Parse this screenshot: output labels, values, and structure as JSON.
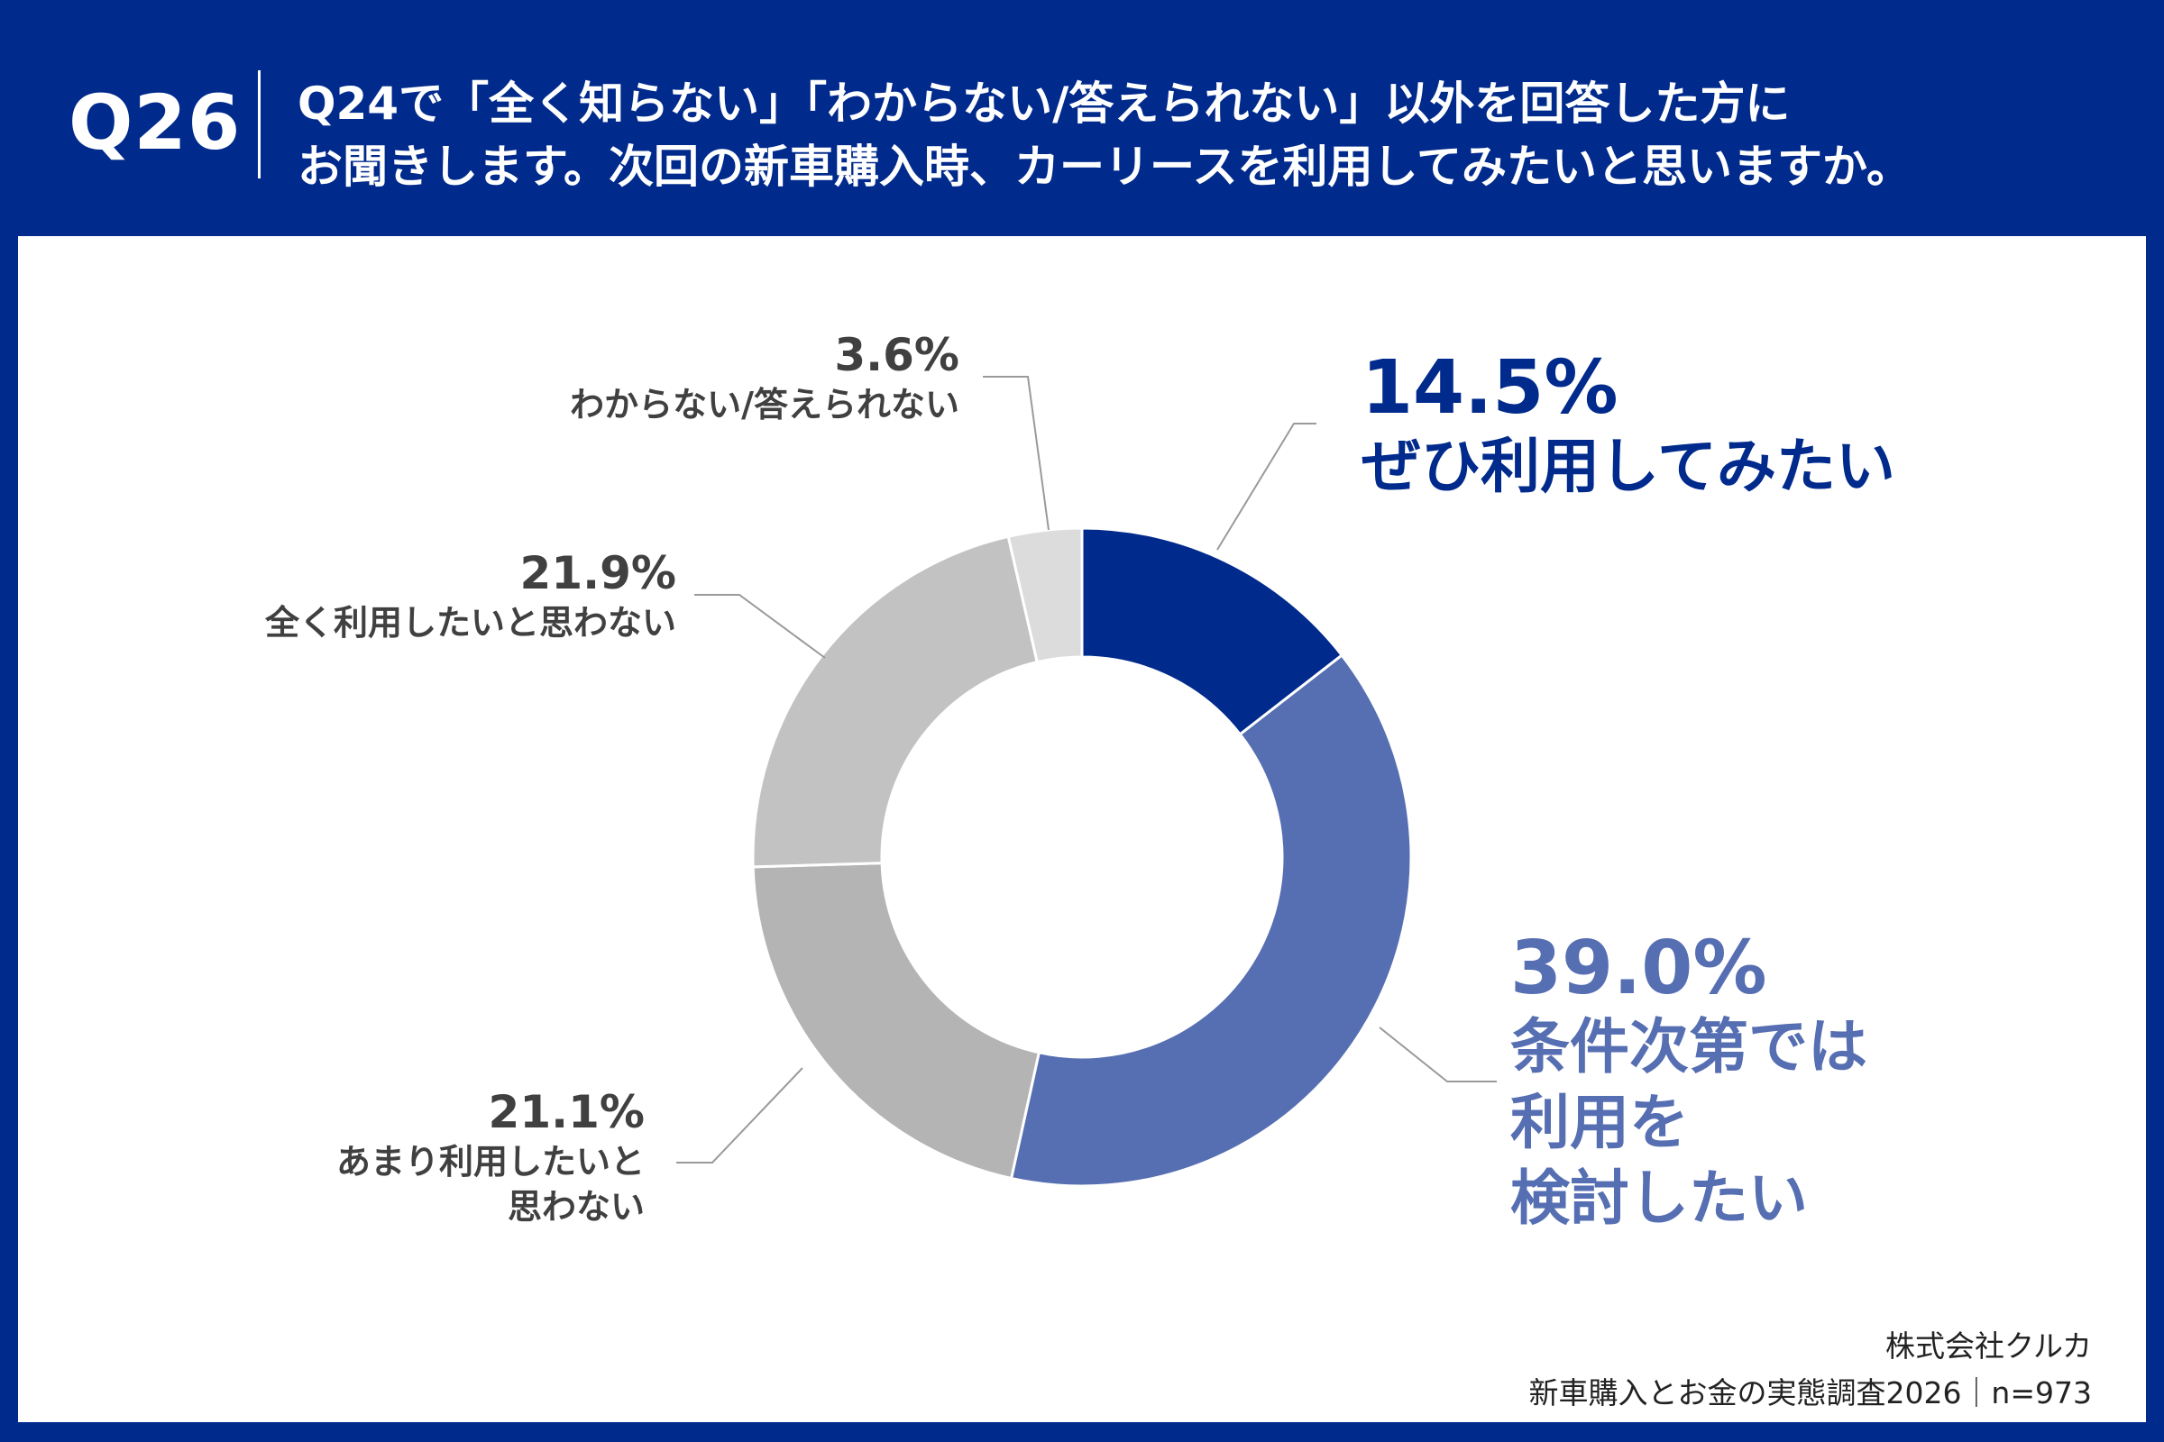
{
  "header": {
    "qnum": "Q26",
    "line1": "Q24で「全く知らない」「わからない/答えられない」以外を回答した方に",
    "line2": "お聞きします。次回の新車購入時、カーリースを利用してみたいと思いますか。"
  },
  "chart_data": {
    "type": "pie",
    "donut": true,
    "slices": [
      {
        "pct": "14.5%",
        "label": "ぜひ利用してみたい",
        "value": 14.5,
        "color": "#002a8c"
      },
      {
        "pct": "39.0%",
        "label_lines": [
          "条件次第では",
          "利用を",
          "検討したい"
        ],
        "value": 39.0,
        "color": "#566eb2"
      },
      {
        "pct": "21.1%",
        "label_lines": [
          "あまり利用したいと",
          "思わない"
        ],
        "value": 21.1,
        "color": "#b4b4b4"
      },
      {
        "pct": "21.9%",
        "label": "全く利用したいと思わない",
        "value": 21.9,
        "color": "#c2c2c2"
      },
      {
        "pct": "3.6%",
        "label": "わからない/答えられない",
        "value": 3.6,
        "color": "#dcdcdc"
      }
    ]
  },
  "credit": {
    "line1": "株式会社クルカ",
    "line2": "新車購入とお金の実態調査2026｜n=973"
  }
}
